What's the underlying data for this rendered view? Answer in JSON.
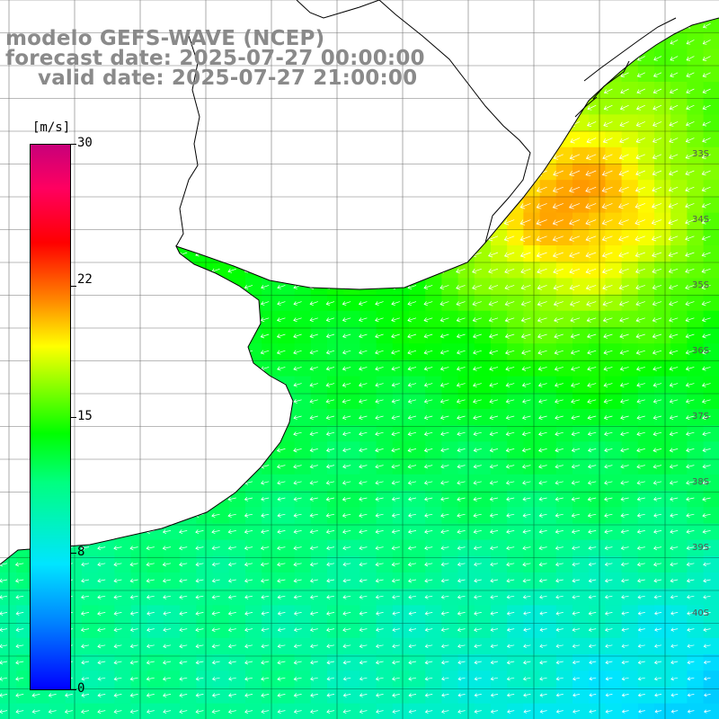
{
  "header": {
    "model": "modelo GEFS-WAVE (NCEP)",
    "forecast": "forecast date: 2025-07-27 00:00:00",
    "valid": "valid date: 2025-07-27 21:00:00"
  },
  "colorbar": {
    "unit": "[m/s]",
    "ticks": [
      "30",
      "22",
      "15",
      "8",
      "0"
    ],
    "colors": [
      "#0000ff",
      "#0080ff",
      "#00e5ff",
      "#00ff80",
      "#00ff00",
      "#80ff00",
      "#ffff00",
      "#ff8000",
      "#ff0000",
      "#ff0060",
      "#c8007a"
    ]
  },
  "latitude_labels": [
    "33S",
    "34S",
    "35S",
    "36S",
    "37S",
    "38S",
    "39S",
    "40S"
  ]
}
